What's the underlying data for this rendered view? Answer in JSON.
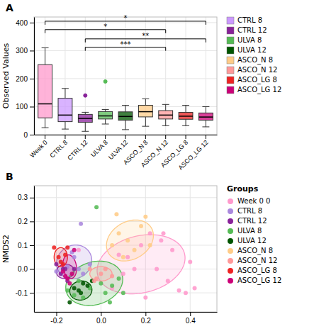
{
  "chart_data": [
    {
      "type": "box",
      "title": "A",
      "ylabel": "Observed Values",
      "categories": [
        "Week 0",
        "CTRL 8",
        "CTRL 12",
        "ULVA 8",
        "ULVA 12",
        "ASCO_N 8",
        "ASCO_N 12",
        "ASCO_LG 8",
        "ASCO_LG 12"
      ],
      "colors": [
        "#FF99CC",
        "#CC99FF",
        "#882299",
        "#55BB55",
        "#005500",
        "#FFCC88",
        "#FF9999",
        "#EE2222",
        "#CC0077"
      ],
      "values": [
        {
          "whisker_low": 25,
          "q1": 60,
          "median": 110,
          "q3": 250,
          "whisker_high": 310,
          "fliers": []
        },
        {
          "whisker_low": 20,
          "q1": 46.5,
          "median": 70,
          "q3": 130,
          "whisker_high": 165,
          "fliers": []
        },
        {
          "whisker_low": 12,
          "q1": 44,
          "median": 58,
          "q3": 72.5,
          "whisker_high": 80,
          "fliers": [
            140
          ]
        },
        {
          "whisker_low": 38,
          "q1": 56,
          "median": 67,
          "q3": 82.5,
          "whisker_high": 90,
          "fliers": [
            190
          ]
        },
        {
          "whisker_low": 18,
          "q1": 51.5,
          "median": 65,
          "q3": 81.5,
          "whisker_high": 105,
          "fliers": []
        },
        {
          "whisker_low": 30,
          "q1": 63.5,
          "median": 82,
          "q3": 105,
          "whisker_high": 128,
          "fliers": []
        },
        {
          "whisker_low": 32,
          "q1": 56,
          "median": 70,
          "q3": 86,
          "whisker_high": 108,
          "fliers": []
        },
        {
          "whisker_low": 32,
          "q1": 55,
          "median": 66,
          "q3": 79.5,
          "whisker_high": 105,
          "fliers": []
        },
        {
          "whisker_low": 28,
          "q1": 51.5,
          "median": 63,
          "q3": 77.5,
          "whisker_high": 100,
          "fliers": []
        }
      ],
      "ylim": [
        0,
        420
      ],
      "yticks": [
        0,
        100,
        200,
        300,
        400
      ],
      "grid": true,
      "annotations": [
        {
          "x1": "Week 0",
          "x2": "ASCO_LG 12",
          "y": 405,
          "text": "*"
        },
        {
          "x1": "Week 0",
          "x2": "ASCO_N 12",
          "y": 375,
          "text": "*"
        },
        {
          "x1": "CTRL 12",
          "x2": "ASCO_LG 12",
          "y": 342,
          "text": "**"
        },
        {
          "x1": "CTRL 12",
          "x2": "ASCO_N 12",
          "y": 312,
          "text": "***"
        }
      ],
      "legend": "right",
      "legend_entries": [
        {
          "label": "CTRL 8",
          "color": "#CC99FF"
        },
        {
          "label": "CTRL 12",
          "color": "#882299"
        },
        {
          "label": "ULVA 8",
          "color": "#55BB55"
        },
        {
          "label": "ULVA 12",
          "color": "#005500"
        },
        {
          "label": "ASCO_N 8",
          "color": "#FFCC88"
        },
        {
          "label": "ASCO_N 12",
          "color": "#FF9999"
        },
        {
          "label": "ASCO_LG 8",
          "color": "#EE2222"
        },
        {
          "label": "ASCO_LG 12",
          "color": "#CC0077"
        }
      ]
    },
    {
      "type": "scatter",
      "title": "B",
      "ylabel": "NMDS2",
      "series": [
        {
          "name": "Week 0 0",
          "color": "#FF99CC",
          "x": [
            0.05,
            0.12,
            0.18,
            0.22,
            0.25,
            0.3,
            0.32,
            0.27,
            0.2,
            0.15,
            0.1,
            0.08,
            0.35,
            0.4,
            0.28,
            0.38,
            -0.1,
            0.42
          ],
          "values": [
            -0.08,
            0.05,
            0.1,
            0.15,
            0.0,
            -0.05,
            0.08,
            0.12,
            -0.12,
            0.0,
            -0.02,
            0.06,
            -0.09,
            0.03,
            0.15,
            -0.1,
            0.08,
            -0.08
          ],
          "ellipse": {
            "cx": 0.18,
            "cy": 0.02,
            "rx": 0.2,
            "ry": 0.12,
            "angle": 12
          }
        },
        {
          "name": "CTRL 8",
          "color": "#AA88DD",
          "x": [
            -0.15,
            -0.12,
            -0.1,
            -0.08,
            -0.05,
            -0.18,
            -0.2,
            -0.13,
            -0.09
          ],
          "values": [
            0.01,
            0.05,
            0.0,
            -0.02,
            0.02,
            0.03,
            -0.01,
            0.07,
            0.19
          ],
          "ellipse": {
            "cx": -0.12,
            "cy": 0.03,
            "rx": 0.08,
            "ry": 0.07,
            "angle": 20
          }
        },
        {
          "name": "CTRL 12",
          "color": "#882299",
          "x": [
            -0.18,
            -0.16,
            -0.15,
            -0.12,
            -0.2,
            -0.17
          ],
          "values": [
            -0.02,
            0.0,
            -0.05,
            0.0,
            0.02,
            0.0
          ],
          "ellipse": {
            "cx": -0.16,
            "cy": -0.01,
            "rx": 0.04,
            "ry": 0.03,
            "angle": 5
          }
        },
        {
          "name": "ULVA 8",
          "color": "#55BB55",
          "x": [
            -0.1,
            -0.05,
            0.02,
            0.05,
            -0.15,
            -0.08,
            0.0,
            0.1,
            -0.02,
            0.08,
            -0.12,
            0.04
          ],
          "values": [
            -0.05,
            -0.08,
            -0.1,
            -0.07,
            -0.09,
            -0.12,
            -0.06,
            -0.1,
            0.26,
            -0.04,
            -0.11,
            -0.14
          ],
          "ellipse": {
            "cx": -0.03,
            "cy": -0.06,
            "rx": 0.13,
            "ry": 0.09,
            "angle": 15
          }
        },
        {
          "name": "ULVA 12",
          "color": "#005500",
          "x": [
            -0.12,
            -0.08,
            -0.06,
            -0.04,
            -0.1,
            -0.14,
            -0.09
          ],
          "values": [
            -0.08,
            -0.06,
            -0.07,
            -0.05,
            -0.09,
            -0.14,
            -0.1
          ],
          "ellipse": {
            "cx": -0.09,
            "cy": -0.09,
            "rx": 0.05,
            "ry": 0.04,
            "angle": 10
          }
        },
        {
          "name": "ASCO_N 8",
          "color": "#FFCC88",
          "x": [
            0.05,
            0.08,
            0.12,
            0.15,
            0.18,
            0.2,
            0.22,
            0.1,
            0.07
          ],
          "values": [
            0.1,
            0.15,
            0.12,
            0.08,
            0.18,
            0.22,
            0.1,
            0.05,
            0.23
          ],
          "ellipse": {
            "cx": 0.13,
            "cy": 0.12,
            "rx": 0.11,
            "ry": 0.08,
            "angle": 25
          }
        },
        {
          "name": "ASCO_N 12",
          "color": "#FF9999",
          "x": [
            -0.02,
            0.0,
            0.02,
            -0.05,
            0.05,
            -0.03
          ],
          "values": [
            -0.04,
            -0.02,
            0.0,
            0.0,
            -0.03,
            -0.05
          ],
          "ellipse": {
            "cx": 0.0,
            "cy": -0.02,
            "rx": 0.05,
            "ry": 0.03,
            "angle": 0
          }
        },
        {
          "name": "ASCO_LG 8",
          "color": "#EE2222",
          "x": [
            -0.18,
            -0.16,
            -0.15,
            -0.17,
            -0.19,
            -0.21
          ],
          "values": [
            0.03,
            0.06,
            0.09,
            0.02,
            0.05,
            0.09
          ],
          "ellipse": {
            "cx": -0.18,
            "cy": 0.05,
            "rx": 0.03,
            "ry": 0.04,
            "angle": 0
          }
        },
        {
          "name": "ASCO_LG 12",
          "color": "#CC0077",
          "x": [
            -0.15,
            -0.13,
            -0.14,
            -0.16,
            -0.12,
            -0.17
          ],
          "values": [
            -0.04,
            -0.02,
            -0.06,
            -0.03,
            0.08,
            -0.01
          ],
          "ellipse": {
            "cx": -0.14,
            "cy": 0.01,
            "rx": 0.03,
            "ry": 0.05,
            "angle": 10
          }
        }
      ],
      "xlim": [
        -0.3,
        0.52
      ],
      "xticks": [
        -0.2,
        {
          "value": 0.0,
          "label": "0.0"
        },
        0.2,
        0.4
      ],
      "ylim": [
        -0.18,
        0.35
      ],
      "yticks": [
        -0.1,
        {
          "value": 0.0,
          "label": "0.0"
        },
        0.1,
        0.2,
        0.3
      ],
      "grid": true,
      "legend": "right",
      "legend_title": "Groups"
    }
  ]
}
